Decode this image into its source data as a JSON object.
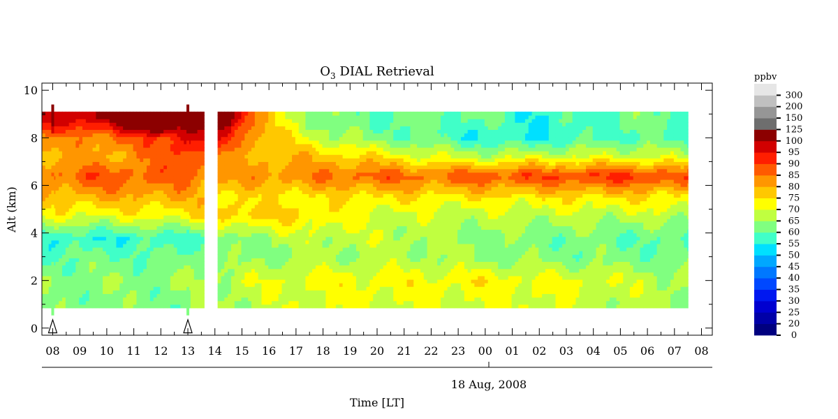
{
  "chart_data": {
    "type": "heatmap",
    "title_main": "O",
    "title_sub": "3",
    "title_rest": " DIAL Retrieval",
    "ylabel": "Alt (km)",
    "xlabel": "Time [LT]",
    "date_label": "18 Aug, 2008",
    "ylim": [
      0,
      10
    ],
    "y_ticks": [
      "0",
      "2",
      "4",
      "6",
      "8",
      "10"
    ],
    "x_ticks": [
      "08",
      "09",
      "10",
      "11",
      "12",
      "13",
      "14",
      "15",
      "16",
      "17",
      "18",
      "19",
      "20",
      "21",
      "22",
      "23",
      "00",
      "01",
      "02",
      "03",
      "04",
      "05",
      "06",
      "07",
      "08"
    ],
    "x_range_hours": [
      7.6,
      32.4
    ],
    "data_x_range_hours": [
      7.6,
      31.5
    ],
    "data_y_range_km": [
      0.85,
      9.1
    ],
    "data_gap_hours": [
      13.6,
      14.0
    ],
    "marker_hours": [
      8.0,
      13.0
    ],
    "colorbar": {
      "unit": "ppbv",
      "levels": [
        "0",
        "20",
        "25",
        "30",
        "35",
        "40",
        "45",
        "50",
        "55",
        "60",
        "65",
        "70",
        "75",
        "80",
        "85",
        "90",
        "95",
        "100",
        "125",
        "150",
        "200",
        "300"
      ],
      "colors": [
        "#00007f",
        "#0000a8",
        "#0000d0",
        "#0018f0",
        "#0048ff",
        "#0078ff",
        "#00a8ff",
        "#00e0ff",
        "#40ffc8",
        "#80ff80",
        "#c0ff40",
        "#ffff00",
        "#ffc800",
        "#ff9600",
        "#ff5a00",
        "#ff1e00",
        "#d20000",
        "#8c0000",
        "#6e6e6e",
        "#969696",
        "#c0c0c0",
        "#e6e6e6"
      ]
    },
    "ozone_field": {
      "description_rows_altitude_km": [
        1.0,
        2.0,
        3.0,
        3.8,
        4.8,
        5.5,
        6.4,
        7.2,
        8.0,
        8.8
      ],
      "columns_hours": [
        8,
        10,
        12,
        13,
        14.5,
        16,
        18,
        20,
        22,
        24,
        26,
        28,
        30,
        31.5
      ],
      "values_ppbv": [
        [
          62,
          63,
          62,
          63,
          66,
          68,
          70,
          70,
          70,
          70,
          70,
          68,
          66,
          65
        ],
        [
          64,
          64,
          64,
          65,
          68,
          70,
          72,
          72,
          72,
          73,
          72,
          70,
          68,
          66
        ],
        [
          60,
          61,
          61,
          62,
          62,
          64,
          65,
          66,
          66,
          64,
          63,
          62,
          62,
          62
        ],
        [
          56,
          56,
          57,
          58,
          62,
          66,
          68,
          68,
          66,
          64,
          62,
          62,
          60,
          58
        ],
        [
          72,
          72,
          73,
          74,
          78,
          77,
          74,
          70,
          68,
          68,
          68,
          68,
          68,
          68
        ],
        [
          78,
          80,
          80,
          80,
          75,
          73,
          74,
          75,
          74,
          74,
          74,
          75,
          74,
          74
        ],
        [
          86,
          89,
          87,
          86,
          82,
          83,
          85,
          88,
          86,
          89,
          90,
          91,
          92,
          88
        ],
        [
          80,
          80,
          85,
          92,
          80,
          80,
          78,
          75,
          70,
          68,
          70,
          70,
          70,
          68
        ],
        [
          82,
          85,
          90,
          98,
          92,
          78,
          68,
          62,
          60,
          55,
          55,
          58,
          60,
          58
        ],
        [
          98,
          100,
          125,
          100,
          105,
          75,
          62,
          60,
          62,
          60,
          55,
          60,
          62,
          60
        ]
      ]
    }
  }
}
